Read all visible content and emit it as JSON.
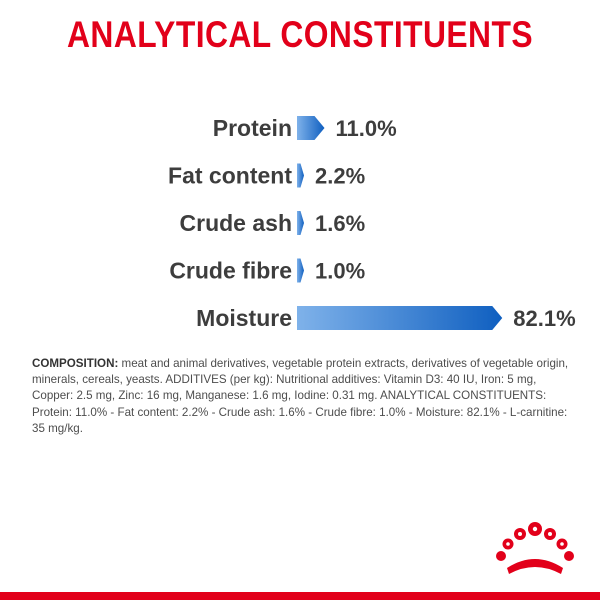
{
  "chart_data": {
    "type": "bar",
    "orientation": "horizontal",
    "title": "ANALYTICAL CONSTITUENTS",
    "categories": [
      "Protein",
      "Fat content",
      "Crude ash",
      "Crude fibre",
      "Moisture"
    ],
    "values": [
      11.0,
      2.2,
      1.6,
      1.0,
      82.1
    ],
    "value_labels": [
      "11.0%",
      "2.2%",
      "1.6%",
      "1.0%",
      "82.1%"
    ],
    "xlim": [
      0,
      100
    ],
    "grid": false,
    "legend": "none",
    "colors": {
      "bar_light": "#7fb2ea",
      "bar_dark": "#0f5fc0",
      "title": "#e2001a"
    }
  },
  "composition": {
    "lead": "COMPOSITION:",
    "text": " meat and animal derivatives, vegetable protein extracts, derivatives of vegetable origin, minerals, cereals, yeasts. ADDITIVES (per kg): Nutritional additives: Vitamin D3: 40 IU, Iron: 5 mg, Copper: 2.5 mg, Zinc: 16 mg, Manganese: 1.6 mg, Iodine: 0.31 mg. ANALYTICAL CONSTITUENTS: Protein: 11.0% - Fat content: 2.2% - Crude ash: 1.6% - Crude fibre: 1.0% - Moisture: 82.1% - L-carnitine: 35 mg/kg."
  },
  "brand": {
    "logo_icon": "crown-icon",
    "accent": "#e2001a"
  }
}
